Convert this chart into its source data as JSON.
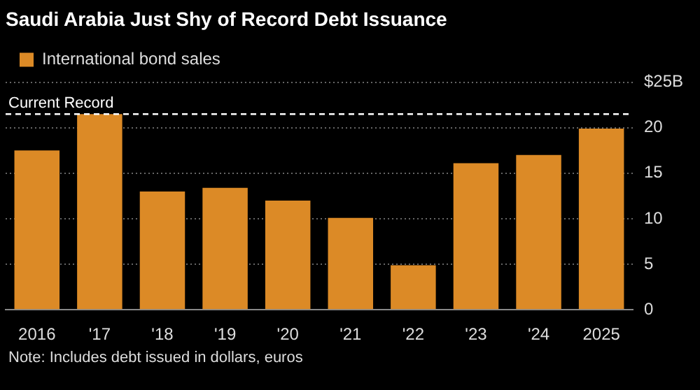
{
  "chart_data": {
    "type": "bar",
    "title": "Saudi Arabia Just Shy of Record Debt Issuance",
    "categories": [
      "2016",
      "'17",
      "'18",
      "'19",
      "'20",
      "'21",
      "'22",
      "'23",
      "'24",
      "2025"
    ],
    "series": [
      {
        "name": "International bond sales",
        "color": "#dc8a26",
        "values": [
          17.5,
          21.5,
          13.0,
          13.4,
          12.0,
          10.1,
          4.9,
          16.1,
          17.0,
          19.9
        ]
      }
    ],
    "ylim": [
      0,
      25
    ],
    "yticks": [
      0,
      5,
      10,
      15,
      20,
      {
        "value": 25,
        "label": "$25B"
      }
    ],
    "grid": "y",
    "legend": "top left",
    "ref_lines": [
      {
        "axis": "y",
        "value": 21.5,
        "label": "Current Record",
        "color": "#ffffff",
        "line_style": "dashed"
      }
    ],
    "annotations": [
      "Note: Includes debt issued in dollars, euros"
    ]
  }
}
